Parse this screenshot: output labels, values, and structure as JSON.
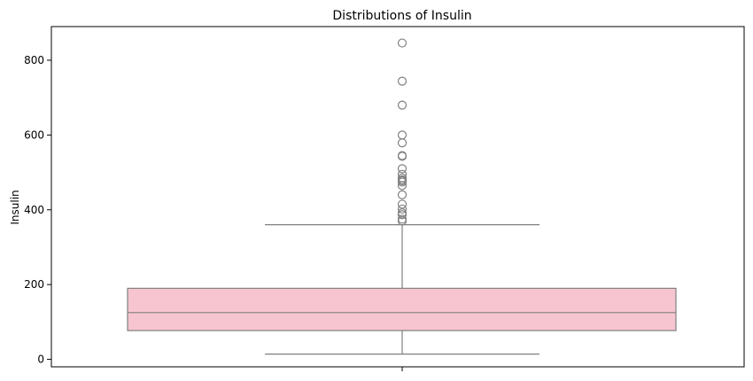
{
  "chart_data": {
    "type": "box",
    "title": "Distributions of Insulin",
    "xlabel": "",
    "ylabel": "Insulin",
    "ylim": [
      -20,
      890
    ],
    "yticks": [
      0,
      200,
      400,
      600,
      800
    ],
    "grid": false,
    "box": {
      "q1": 77,
      "median": 125,
      "q3": 190,
      "whisker_low": 14,
      "whisker_high": 360,
      "outliers": [
        846,
        744,
        680,
        600,
        579,
        545,
        543,
        510,
        495,
        485,
        480,
        478,
        474,
        465,
        440,
        415,
        402,
        392,
        387,
        375,
        370
      ]
    },
    "colors": {
      "box_fill": "#f7c5d0",
      "line": "#808080"
    }
  }
}
